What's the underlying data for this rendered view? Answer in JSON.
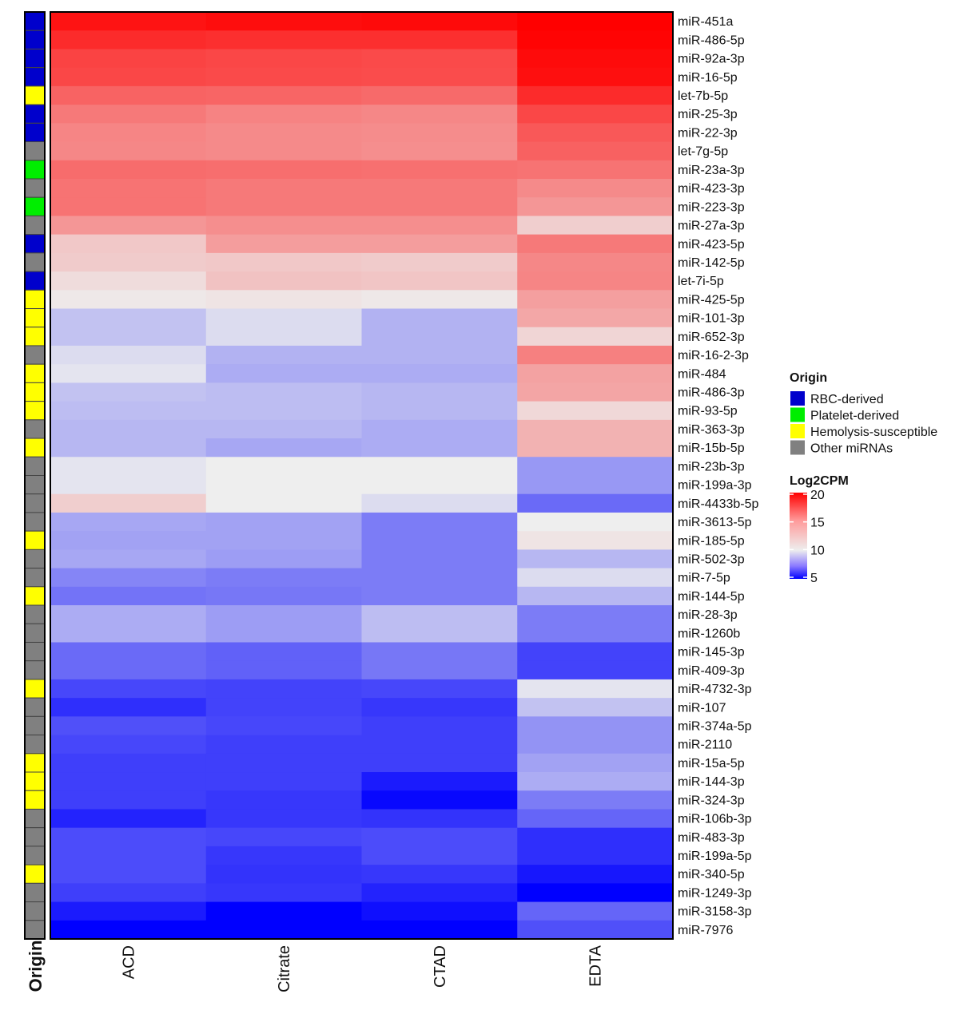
{
  "chart_data": {
    "type": "heatmap",
    "columns": [
      "ACD",
      "Citrate",
      "CTAD",
      "EDTA"
    ],
    "rows": [
      "miR-451a",
      "miR-486-5p",
      "miR-92a-3p",
      "miR-16-5p",
      "let-7b-5p",
      "miR-25-3p",
      "miR-22-3p",
      "let-7g-5p",
      "miR-23a-3p",
      "miR-423-3p",
      "miR-223-3p",
      "miR-27a-3p",
      "miR-423-5p",
      "miR-142-5p",
      "let-7i-5p",
      "miR-425-5p",
      "miR-101-3p",
      "miR-652-3p",
      "miR-16-2-3p",
      "miR-484",
      "miR-486-3p",
      "miR-93-5p",
      "miR-363-3p",
      "miR-15b-5p",
      "miR-23b-3p",
      "miR-199a-3p",
      "miR-4433b-5p",
      "miR-3613-5p",
      "miR-185-5p",
      "miR-502-3p",
      "miR-7-5p",
      "miR-144-5p",
      "miR-28-3p",
      "miR-1260b",
      "miR-145-3p",
      "miR-409-3p",
      "miR-4732-3p",
      "miR-107",
      "miR-374a-5p",
      "miR-2110",
      "miR-15a-5p",
      "miR-144-3p",
      "miR-324-3p",
      "miR-106b-3p",
      "miR-483-3p",
      "miR-199a-5p",
      "miR-340-5p",
      "miR-1249-3p",
      "miR-3158-3p",
      "miR-7976"
    ],
    "values": [
      [
        19.0,
        19.3,
        19.5,
        20.0
      ],
      [
        17.8,
        17.6,
        17.6,
        19.8
      ],
      [
        16.6,
        16.4,
        16.3,
        19.4
      ],
      [
        16.4,
        16.3,
        16.2,
        19.2
      ],
      [
        15.1,
        15.0,
        14.8,
        17.8
      ],
      [
        14.1,
        13.7,
        13.5,
        16.4
      ],
      [
        13.6,
        13.4,
        13.3,
        15.6
      ],
      [
        13.5,
        13.4,
        13.2,
        15.2
      ],
      [
        14.7,
        14.6,
        14.5,
        14.4
      ],
      [
        14.4,
        14.1,
        14.1,
        13.4
      ],
      [
        14.4,
        14.1,
        14.1,
        12.9
      ],
      [
        12.9,
        13.2,
        13.2,
        10.8
      ],
      [
        11.0,
        12.6,
        12.6,
        14.1
      ],
      [
        10.9,
        11.0,
        10.9,
        13.5
      ],
      [
        10.4,
        11.2,
        11.1,
        13.6
      ],
      [
        10.1,
        10.2,
        10.1,
        12.5
      ],
      [
        9.4,
        9.8,
        9.1,
        12.2
      ],
      [
        9.4,
        9.8,
        9.1,
        10.6
      ],
      [
        9.8,
        9.1,
        9.1,
        13.8
      ],
      [
        9.9,
        9.0,
        9.0,
        12.4
      ],
      [
        9.4,
        9.3,
        9.2,
        12.3
      ],
      [
        9.3,
        9.3,
        9.2,
        10.5
      ],
      [
        9.2,
        9.2,
        9.0,
        11.8
      ],
      [
        9.2,
        8.9,
        9.0,
        11.8
      ],
      [
        9.9,
        10.0,
        10.0,
        8.6
      ],
      [
        9.9,
        10.0,
        10.0,
        8.6
      ],
      [
        10.8,
        10.0,
        9.8,
        7.6
      ],
      [
        8.9,
        8.8,
        8.0,
        10.0
      ],
      [
        8.8,
        8.8,
        8.0,
        10.2
      ],
      [
        8.9,
        8.7,
        8.0,
        9.2
      ],
      [
        8.2,
        8.0,
        8.0,
        9.8
      ],
      [
        7.8,
        7.9,
        8.0,
        9.2
      ],
      [
        9.0,
        8.7,
        9.3,
        8.0
      ],
      [
        9.0,
        8.7,
        9.3,
        8.0
      ],
      [
        7.6,
        7.4,
        7.9,
        6.7
      ],
      [
        7.6,
        7.4,
        7.9,
        6.7
      ],
      [
        6.8,
        6.7,
        6.8,
        9.9
      ],
      [
        6.2,
        6.7,
        6.4,
        9.4
      ],
      [
        7.0,
        6.8,
        6.6,
        8.5
      ],
      [
        6.8,
        6.6,
        6.6,
        8.5
      ],
      [
        6.6,
        6.6,
        6.6,
        8.8
      ],
      [
        6.6,
        6.6,
        5.7,
        9.0
      ],
      [
        6.6,
        6.4,
        5.2,
        8.0
      ],
      [
        5.9,
        6.4,
        6.3,
        7.5
      ],
      [
        6.9,
        6.8,
        6.9,
        6.2
      ],
      [
        6.9,
        6.4,
        6.9,
        6.2
      ],
      [
        6.9,
        6.3,
        6.4,
        5.6
      ],
      [
        6.6,
        6.4,
        5.9,
        4.3
      ],
      [
        5.7,
        4.8,
        5.4,
        7.5
      ],
      [
        4.9,
        4.3,
        4.3,
        7.0
      ]
    ],
    "origin": [
      "RBC-derived",
      "RBC-derived",
      "RBC-derived",
      "RBC-derived",
      "Hemolysis-susceptible",
      "RBC-derived",
      "RBC-derived",
      "Other miRNAs",
      "Platelet-derived",
      "Other miRNAs",
      "Platelet-derived",
      "Other miRNAs",
      "RBC-derived",
      "Other miRNAs",
      "RBC-derived",
      "Hemolysis-susceptible",
      "Hemolysis-susceptible",
      "Hemolysis-susceptible",
      "Other miRNAs",
      "Hemolysis-susceptible",
      "Hemolysis-susceptible",
      "Hemolysis-susceptible",
      "Other miRNAs",
      "Hemolysis-susceptible",
      "Other miRNAs",
      "Other miRNAs",
      "Other miRNAs",
      "Other miRNAs",
      "Hemolysis-susceptible",
      "Other miRNAs",
      "Other miRNAs",
      "Hemolysis-susceptible",
      "Other miRNAs",
      "Other miRNAs",
      "Other miRNAs",
      "Other miRNAs",
      "Hemolysis-susceptible",
      "Other miRNAs",
      "Other miRNAs",
      "Other miRNAs",
      "Hemolysis-susceptible",
      "Hemolysis-susceptible",
      "Hemolysis-susceptible",
      "Other miRNAs",
      "Other miRNAs",
      "Other miRNAs",
      "Hemolysis-susceptible",
      "Other miRNAs",
      "Other miRNAs",
      "Other miRNAs"
    ],
    "origin_axis_label": "Origin",
    "origin_legend": {
      "title": "Origin",
      "entries": [
        {
          "label": "RBC-derived",
          "color": "#0000cc"
        },
        {
          "label": "Platelet-derived",
          "color": "#00ee00"
        },
        {
          "label": "Hemolysis-susceptible",
          "color": "#ffff00"
        },
        {
          "label": "Other miRNAs",
          "color": "#808080"
        }
      ]
    },
    "colorbar": {
      "title": "Log2CPM",
      "range": [
        5,
        20
      ],
      "ticks": [
        "20",
        "15",
        "10",
        "5"
      ],
      "tick_values": [
        20,
        15,
        10,
        5
      ],
      "colors": {
        "low": "#0000ff",
        "mid": "#eeeeee",
        "high": "#ff0000"
      },
      "midpoint": 10
    }
  }
}
